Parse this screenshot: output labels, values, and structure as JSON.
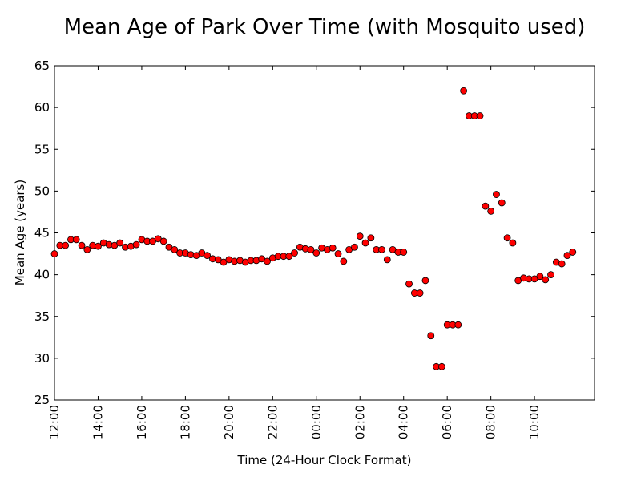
{
  "chart_data": {
    "type": "scatter",
    "title": "Mean Age of Park Over Time (with Mosquito used)",
    "xlabel": "Time (24-Hour Clock Format)",
    "ylabel": "Mean Age (years)",
    "xlim": [
      "12:00",
      "12:45"
    ],
    "ylim": [
      25,
      65
    ],
    "xtick_labels": [
      "12:00",
      "14:00",
      "16:00",
      "18:00",
      "20:00",
      "22:00",
      "00:00",
      "02:00",
      "04:00",
      "06:00",
      "08:00",
      "10:00"
    ],
    "ytick_labels": [
      "25",
      "30",
      "35",
      "40",
      "45",
      "50",
      "55",
      "60",
      "65"
    ],
    "grid": false,
    "marker_color": "#ff0000",
    "marker_edge_color": "#000000",
    "series": [
      {
        "x": [
          "12:00",
          "12:15",
          "12:30",
          "12:45",
          "13:00",
          "13:15",
          "13:30",
          "13:45",
          "14:00",
          "14:15",
          "14:30",
          "14:45",
          "15:00",
          "15:15",
          "15:30",
          "15:45",
          "16:00",
          "16:15",
          "16:30",
          "16:45",
          "17:00",
          "17:15",
          "17:30",
          "17:45",
          "18:00",
          "18:15",
          "18:30",
          "18:45",
          "19:00",
          "19:15",
          "19:30",
          "19:45",
          "20:00",
          "20:15",
          "20:30",
          "20:45",
          "21:00",
          "21:15",
          "21:30",
          "21:45",
          "22:00",
          "22:15",
          "22:30",
          "22:45",
          "23:00",
          "23:15",
          "23:30",
          "23:45",
          "00:00",
          "00:15",
          "00:30",
          "00:45",
          "01:00",
          "01:15",
          "01:30",
          "01:45",
          "02:00",
          "02:15",
          "02:30",
          "02:45",
          "03:00",
          "03:15",
          "03:30",
          "03:45",
          "04:00",
          "04:15",
          "04:30",
          "04:45",
          "05:00",
          "05:15",
          "05:30",
          "05:45",
          "06:00",
          "06:15",
          "06:30",
          "06:45",
          "07:00",
          "07:15",
          "07:30",
          "07:45",
          "08:00",
          "08:15",
          "08:30",
          "08:45",
          "09:00",
          "09:15",
          "09:30",
          "09:45",
          "10:00",
          "10:15",
          "10:30",
          "10:45",
          "11:00",
          "11:15",
          "11:30",
          "11:45"
        ],
        "y": [
          42.5,
          43.5,
          43.5,
          44.2,
          44.2,
          43.5,
          43.0,
          43.5,
          43.4,
          43.8,
          43.6,
          43.5,
          43.8,
          43.3,
          43.4,
          43.6,
          44.2,
          44.0,
          44.0,
          44.3,
          44.0,
          43.3,
          43.0,
          42.6,
          42.6,
          42.4,
          42.3,
          42.6,
          42.3,
          41.9,
          41.8,
          41.5,
          41.8,
          41.6,
          41.7,
          41.5,
          41.7,
          41.7,
          41.9,
          41.6,
          42.0,
          42.2,
          42.2,
          42.2,
          42.6,
          43.3,
          43.1,
          43.0,
          42.6,
          43.2,
          43.0,
          43.2,
          42.5,
          41.6,
          43.0,
          43.3,
          44.6,
          43.8,
          44.4,
          43.0,
          43.0,
          41.8,
          43.0,
          42.7,
          42.7,
          38.9,
          37.8,
          37.8,
          39.3,
          32.7,
          29.0,
          29.0,
          34.0,
          34.0,
          34.0,
          62.0,
          59.0,
          59.0,
          59.0,
          48.2,
          47.6,
          49.6,
          48.6,
          44.4,
          43.8,
          39.3,
          39.6,
          39.5,
          39.5,
          39.8,
          39.4,
          40.0,
          41.5,
          41.3,
          42.3,
          42.7
        ]
      }
    ]
  }
}
